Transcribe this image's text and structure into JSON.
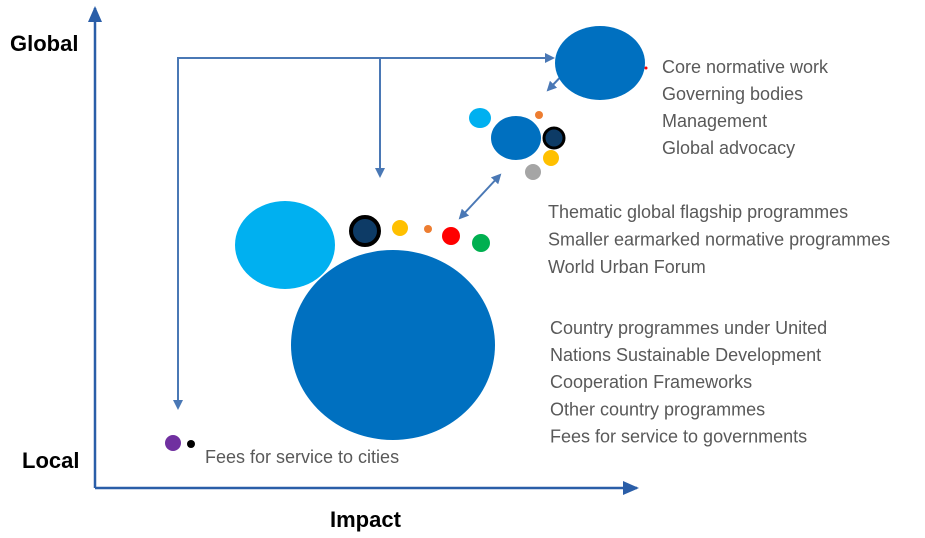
{
  "axes": {
    "y_top": "Global",
    "y_bottom": "Local",
    "x": "Impact"
  },
  "groups": [
    {
      "lines": [
        "Core normative work",
        "Governing bodies",
        "Management",
        "Global advocacy"
      ]
    },
    {
      "lines": [
        "Thematic global flagship programmes",
        "Smaller earmarked normative programmes",
        "World Urban Forum"
      ]
    },
    {
      "lines": [
        "Country programmes under United",
        "Nations Sustainable Development",
        "Cooperation Frameworks",
        "Other country programmes",
        "Fees for service to governments"
      ]
    },
    {
      "lines": [
        "Fees for service to cities"
      ]
    }
  ]
}
